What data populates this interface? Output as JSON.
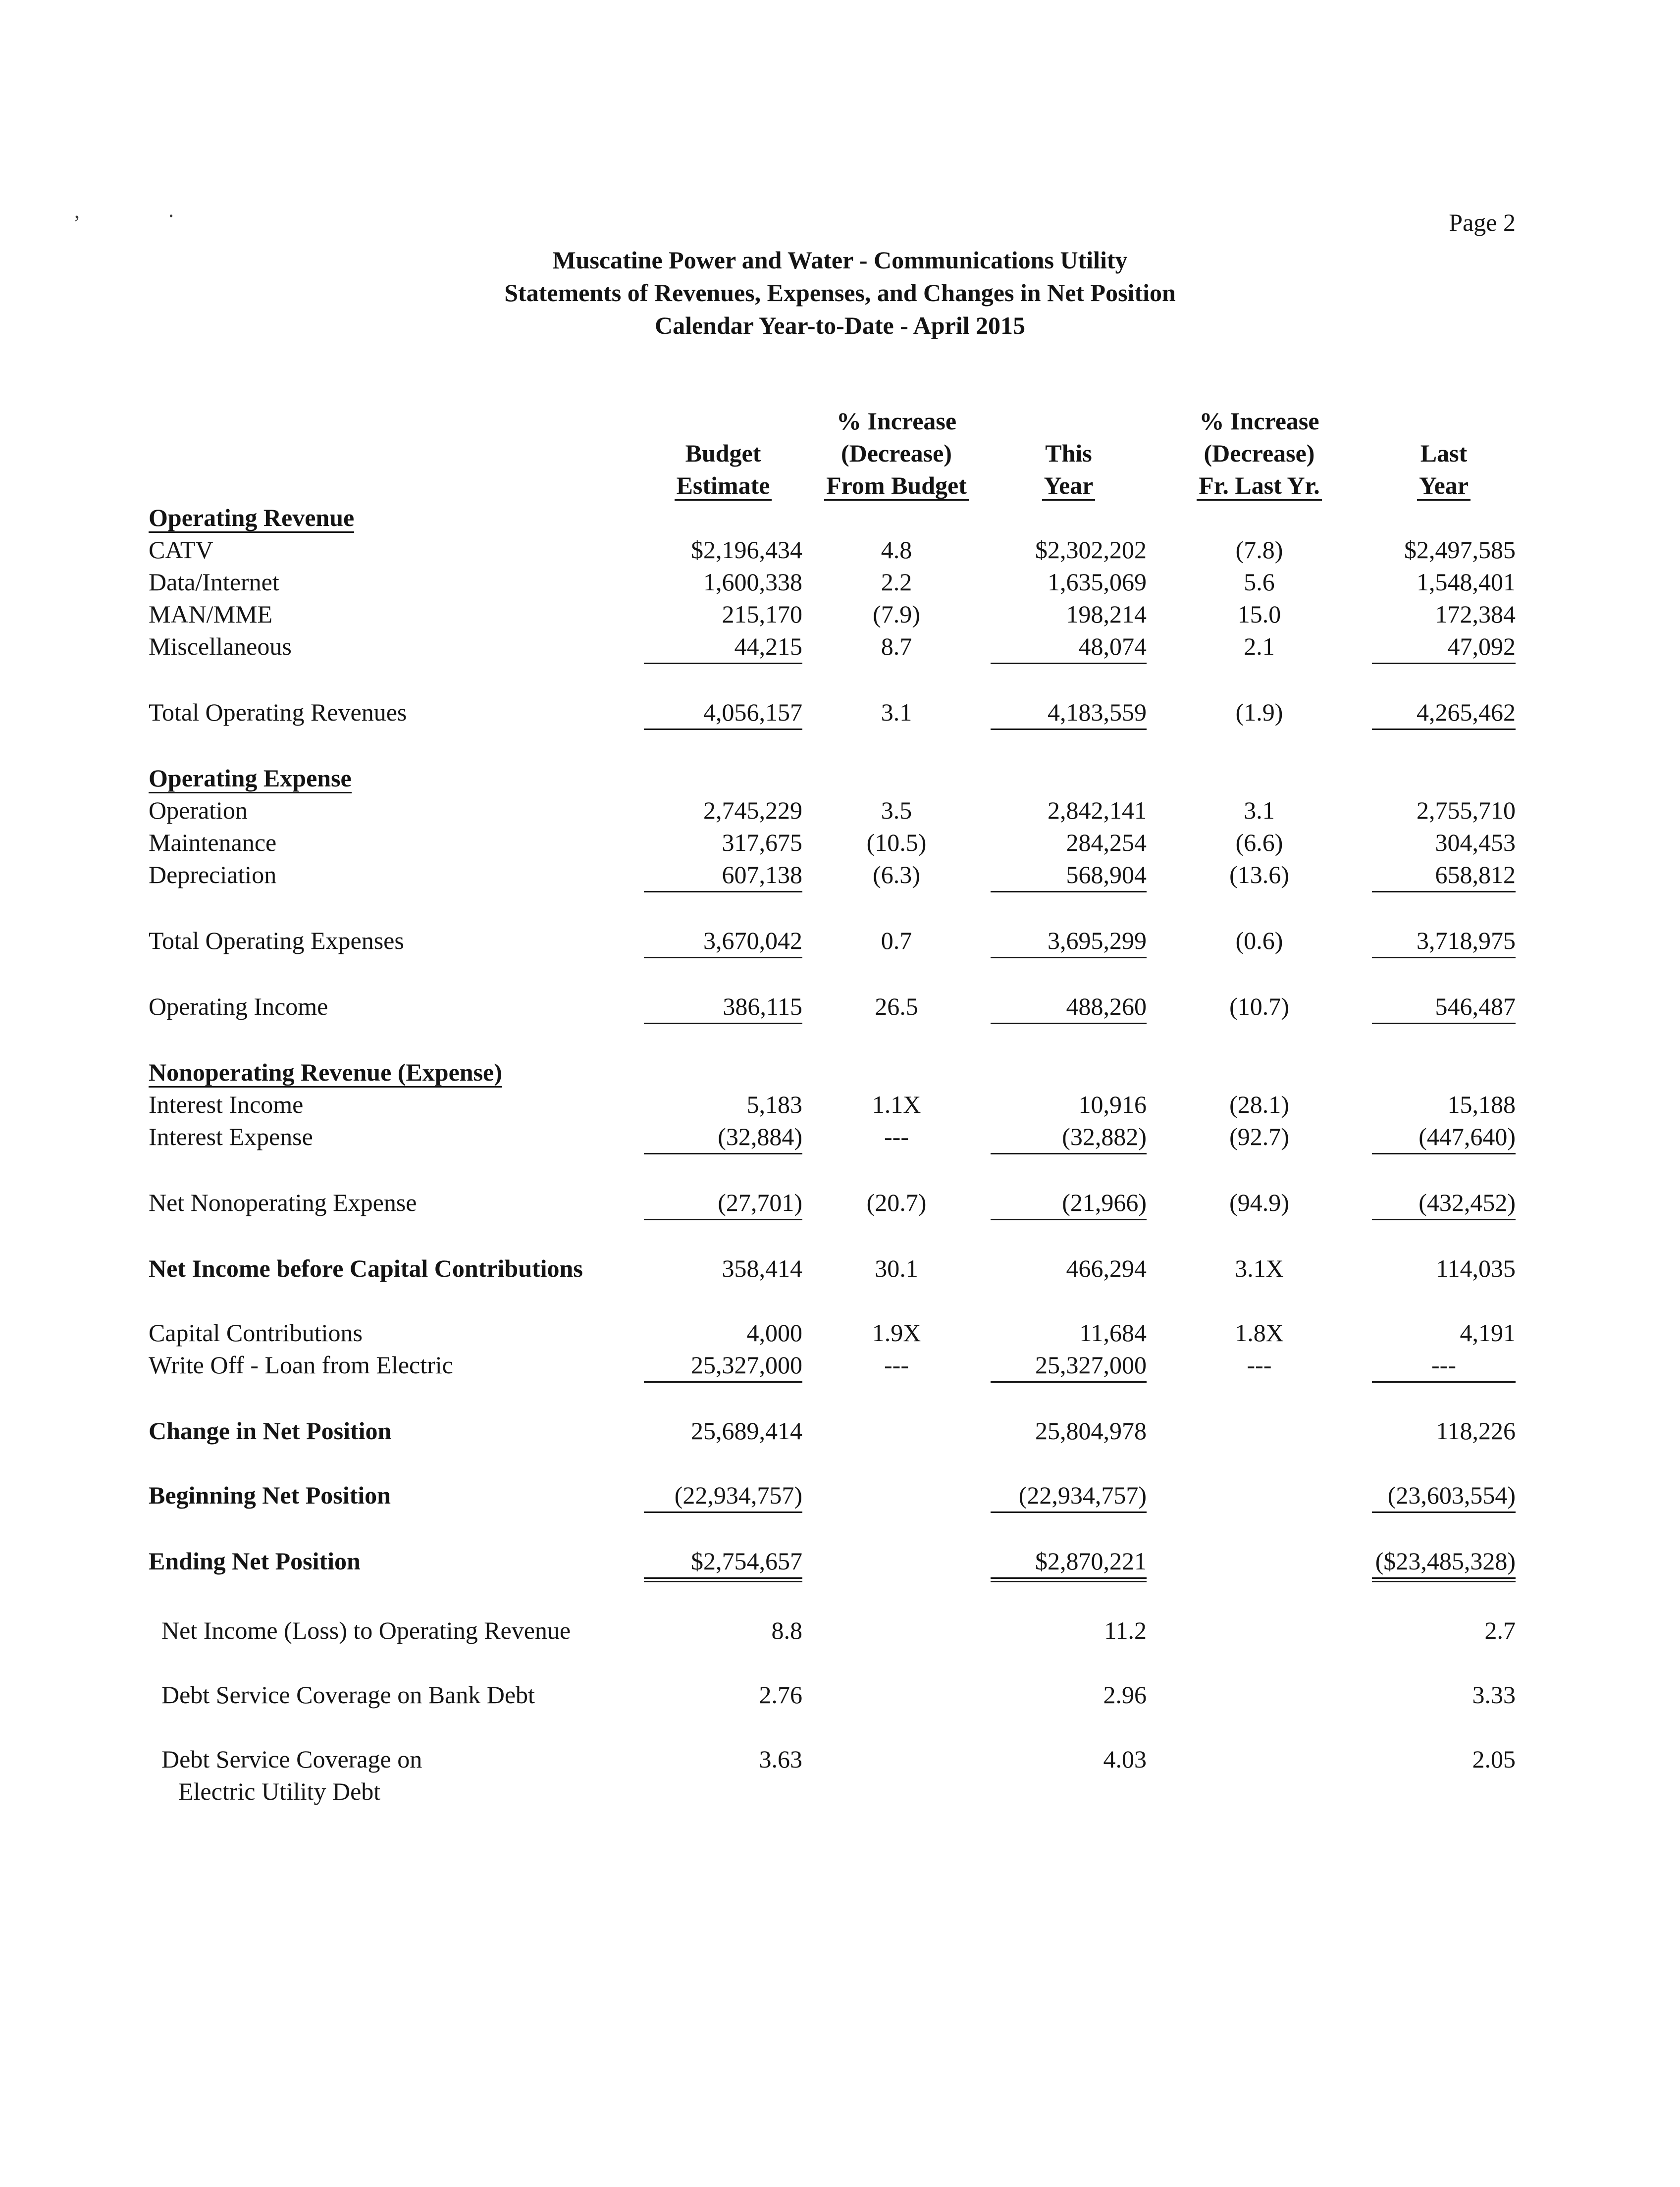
{
  "page_number": "Page 2",
  "scan_marks": [
    ",",
    "."
  ],
  "title": {
    "line1": "Muscatine Power and Water - Communications Utility",
    "line2": "Statements of Revenues, Expenses, and Changes in Net Position",
    "line3": "Calendar Year-to-Date - April 2015"
  },
  "header": {
    "pct_increase": "% Increase",
    "budget_l1": "Budget",
    "budget_l2": "Estimate",
    "from_budget_l1": "(Decrease)",
    "from_budget_l2": "From Budget",
    "this_l1": "This",
    "this_l2": "Year",
    "fr_last_l1": "(Decrease)",
    "fr_last_l2": "Fr. Last Yr.",
    "last_l1": "Last",
    "last_l2": "Year"
  },
  "rows": [
    {
      "label": "Operating Revenue",
      "section": true
    },
    {
      "label": "CATV",
      "values": [
        "$2,196,434",
        "4.8",
        "$2,302,202",
        "(7.8)",
        "$2,497,585"
      ]
    },
    {
      "label": "Data/Internet",
      "values": [
        "1,600,338",
        "2.2",
        "1,635,069",
        "5.6",
        "1,548,401"
      ]
    },
    {
      "label": "MAN/MME",
      "values": [
        "215,170",
        "(7.9)",
        "198,214",
        "15.0",
        "172,384"
      ]
    },
    {
      "label": "Miscellaneous",
      "values": [
        "44,215",
        "8.7",
        "48,074",
        "2.1",
        "47,092"
      ],
      "underline": "single"
    },
    {
      "label": "Total Operating Revenues",
      "values": [
        "4,056,157",
        "3.1",
        "4,183,559",
        "(1.9)",
        "4,265,462"
      ],
      "underline": "single",
      "gap": true
    },
    {
      "label": "Operating Expense",
      "section": true,
      "gap": true
    },
    {
      "label": "Operation",
      "values": [
        "2,745,229",
        "3.5",
        "2,842,141",
        "3.1",
        "2,755,710"
      ]
    },
    {
      "label": "Maintenance",
      "values": [
        "317,675",
        "(10.5)",
        "284,254",
        "(6.6)",
        "304,453"
      ]
    },
    {
      "label": "Depreciation",
      "values": [
        "607,138",
        "(6.3)",
        "568,904",
        "(13.6)",
        "658,812"
      ],
      "underline": "single"
    },
    {
      "label": "Total Operating Expenses",
      "values": [
        "3,670,042",
        "0.7",
        "3,695,299",
        "(0.6)",
        "3,718,975"
      ],
      "underline": "single",
      "gap": true
    },
    {
      "label": "Operating Income",
      "values": [
        "386,115",
        "26.5",
        "488,260",
        "(10.7)",
        "546,487"
      ],
      "underline": "single",
      "gap": true
    },
    {
      "label": "Nonoperating Revenue (Expense)",
      "section": true,
      "gap": true
    },
    {
      "label": "Interest Income",
      "values": [
        "5,183",
        "1.1X",
        "10,916",
        "(28.1)",
        "15,188"
      ]
    },
    {
      "label": "Interest Expense",
      "values": [
        "(32,884)",
        "---",
        "(32,882)",
        "(92.7)",
        "(447,640)"
      ],
      "underline": "single"
    },
    {
      "label": "Net Nonoperating Expense",
      "values": [
        "(27,701)",
        "(20.7)",
        "(21,966)",
        "(94.9)",
        "(432,452)"
      ],
      "underline": "single",
      "gap": true
    },
    {
      "label": "Net Income before Capital Contributions",
      "bold": true,
      "values": [
        "358,414",
        "30.1",
        "466,294",
        "3.1X",
        "114,035"
      ],
      "gap": true
    },
    {
      "label": "Capital Contributions",
      "values": [
        "4,000",
        "1.9X",
        "11,684",
        "1.8X",
        "4,191"
      ],
      "gap": true
    },
    {
      "label": "Write Off - Loan from Electric",
      "values": [
        "25,327,000",
        "---",
        "25,327,000",
        "---",
        "---"
      ],
      "underline": "single"
    },
    {
      "label": "Change in Net Position",
      "bold": true,
      "values": [
        "25,689,414",
        "",
        "25,804,978",
        "",
        "118,226"
      ],
      "gap": true
    },
    {
      "label": "Beginning Net Position",
      "bold": true,
      "values": [
        "(22,934,757)",
        "",
        "(22,934,757)",
        "",
        "(23,603,554)"
      ],
      "underline": "single",
      "gap": true
    },
    {
      "label": "Ending Net Position",
      "bold": true,
      "values": [
        "$2,754,657",
        "",
        "$2,870,221",
        "",
        "($23,485,328)"
      ],
      "underline": "double",
      "gap": true
    },
    {
      "label": "Net Income (Loss) to Operating Revenue",
      "indent": true,
      "values": [
        "8.8",
        "",
        "11.2",
        "",
        "2.7"
      ],
      "gap": true
    },
    {
      "label": "Debt Service Coverage on Bank Debt",
      "indent": true,
      "values": [
        "2.76",
        "",
        "2.96",
        "",
        "3.33"
      ],
      "gap": true
    },
    {
      "label": "Debt Service Coverage on",
      "label2": "Electric Utility Debt",
      "indent": true,
      "values": [
        "3.63",
        "",
        "4.03",
        "",
        "2.05"
      ],
      "gap": true
    }
  ]
}
